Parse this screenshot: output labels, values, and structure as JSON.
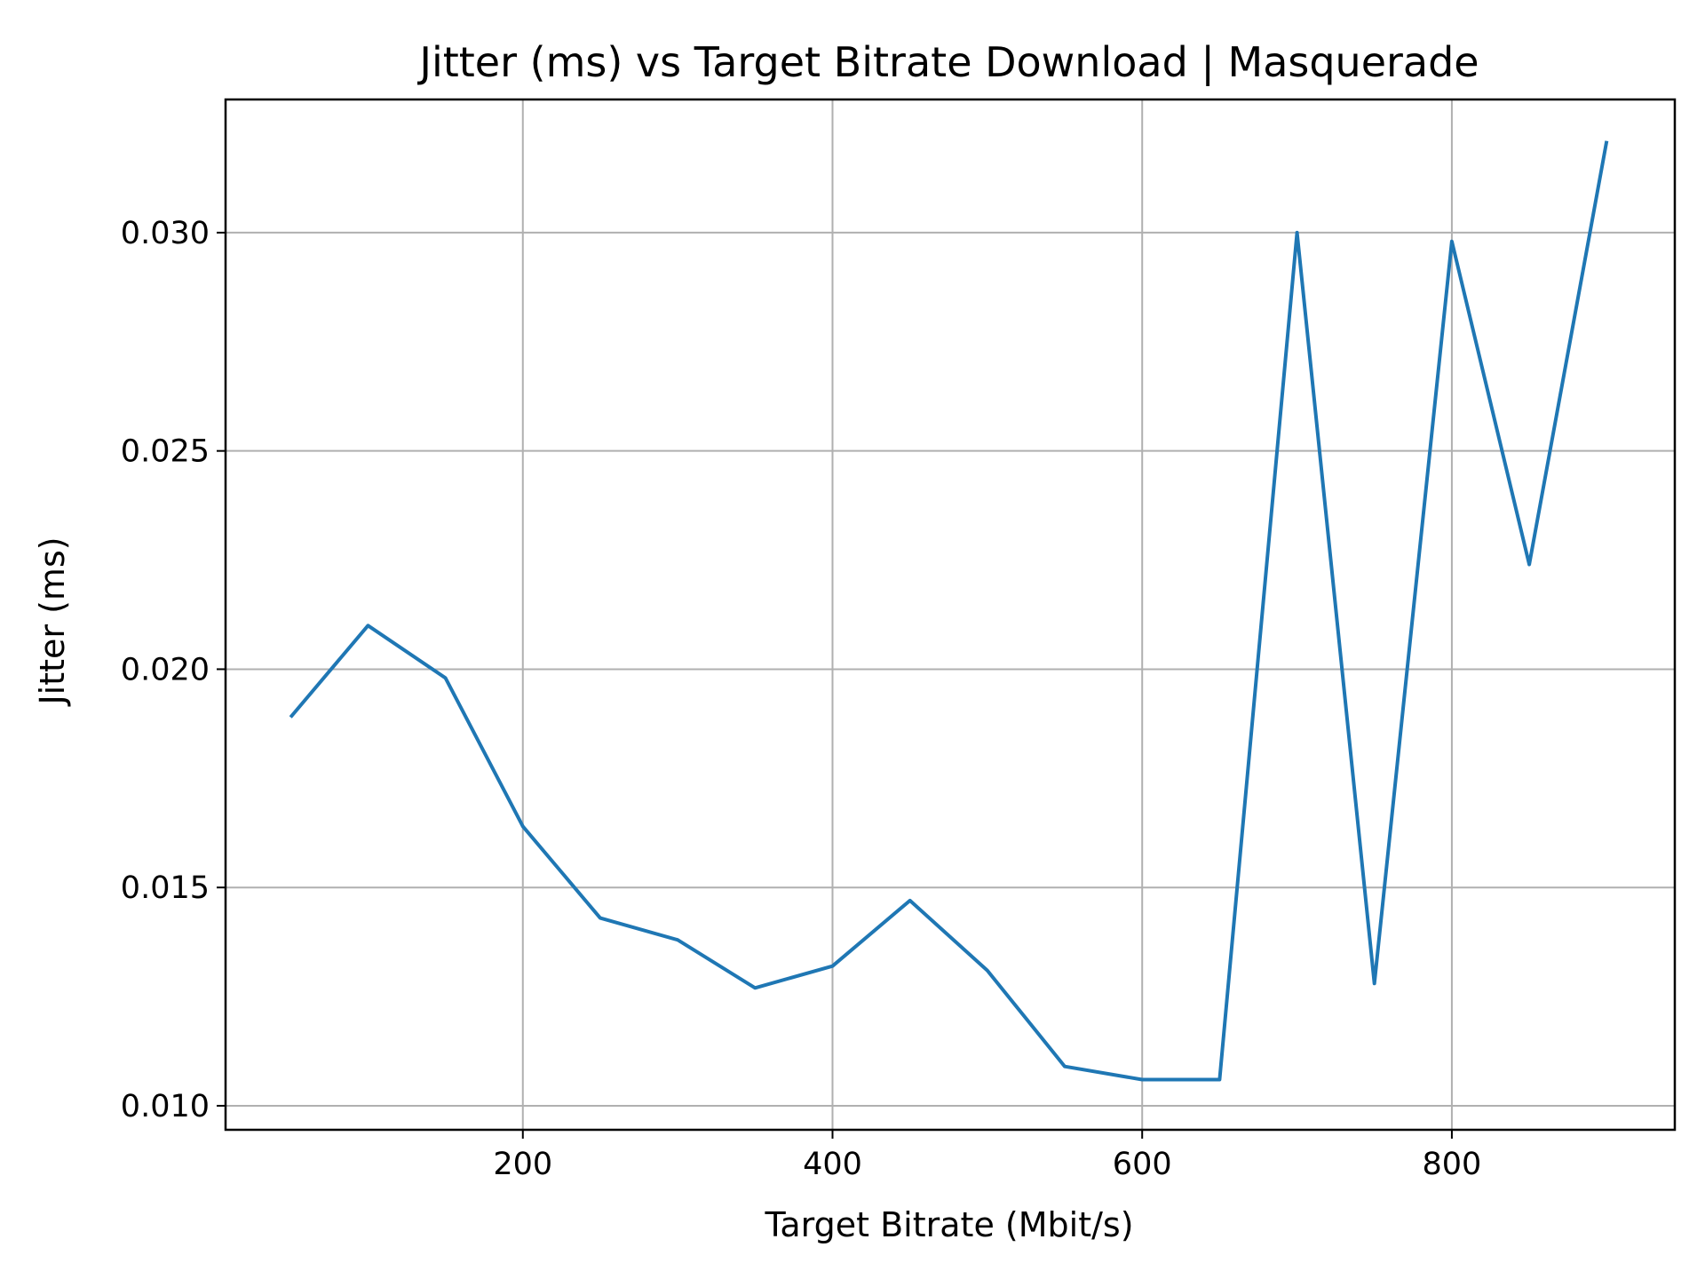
{
  "chart_data": {
    "type": "line",
    "title": "Jitter (ms) vs Target Bitrate Download | Masquerade",
    "xlabel": "Target Bitrate (Mbit/s)",
    "ylabel": "Jitter (ms)",
    "xlim": [
      8,
      944
    ],
    "ylim": [
      0.00945,
      0.03305
    ],
    "xticks": [
      200,
      400,
      600,
      800
    ],
    "yticks": [
      0.01,
      0.015,
      0.02,
      0.025,
      0.03
    ],
    "ytick_labels": [
      "0.010",
      "0.015",
      "0.020",
      "0.025",
      "0.030"
    ],
    "grid": true,
    "series": [
      {
        "color": "#1f77b4",
        "x": [
          50,
          100,
          150,
          200,
          250,
          300,
          350,
          400,
          450,
          500,
          550,
          600,
          650,
          700,
          750,
          800,
          850,
          900
        ],
        "values": [
          0.0189,
          0.021,
          0.0198,
          0.0164,
          0.0143,
          0.0138,
          0.0127,
          0.0132,
          0.0147,
          0.0131,
          0.0109,
          0.0106,
          0.0106,
          0.03,
          0.0128,
          0.0298,
          0.0224,
          0.0321
        ]
      }
    ]
  }
}
